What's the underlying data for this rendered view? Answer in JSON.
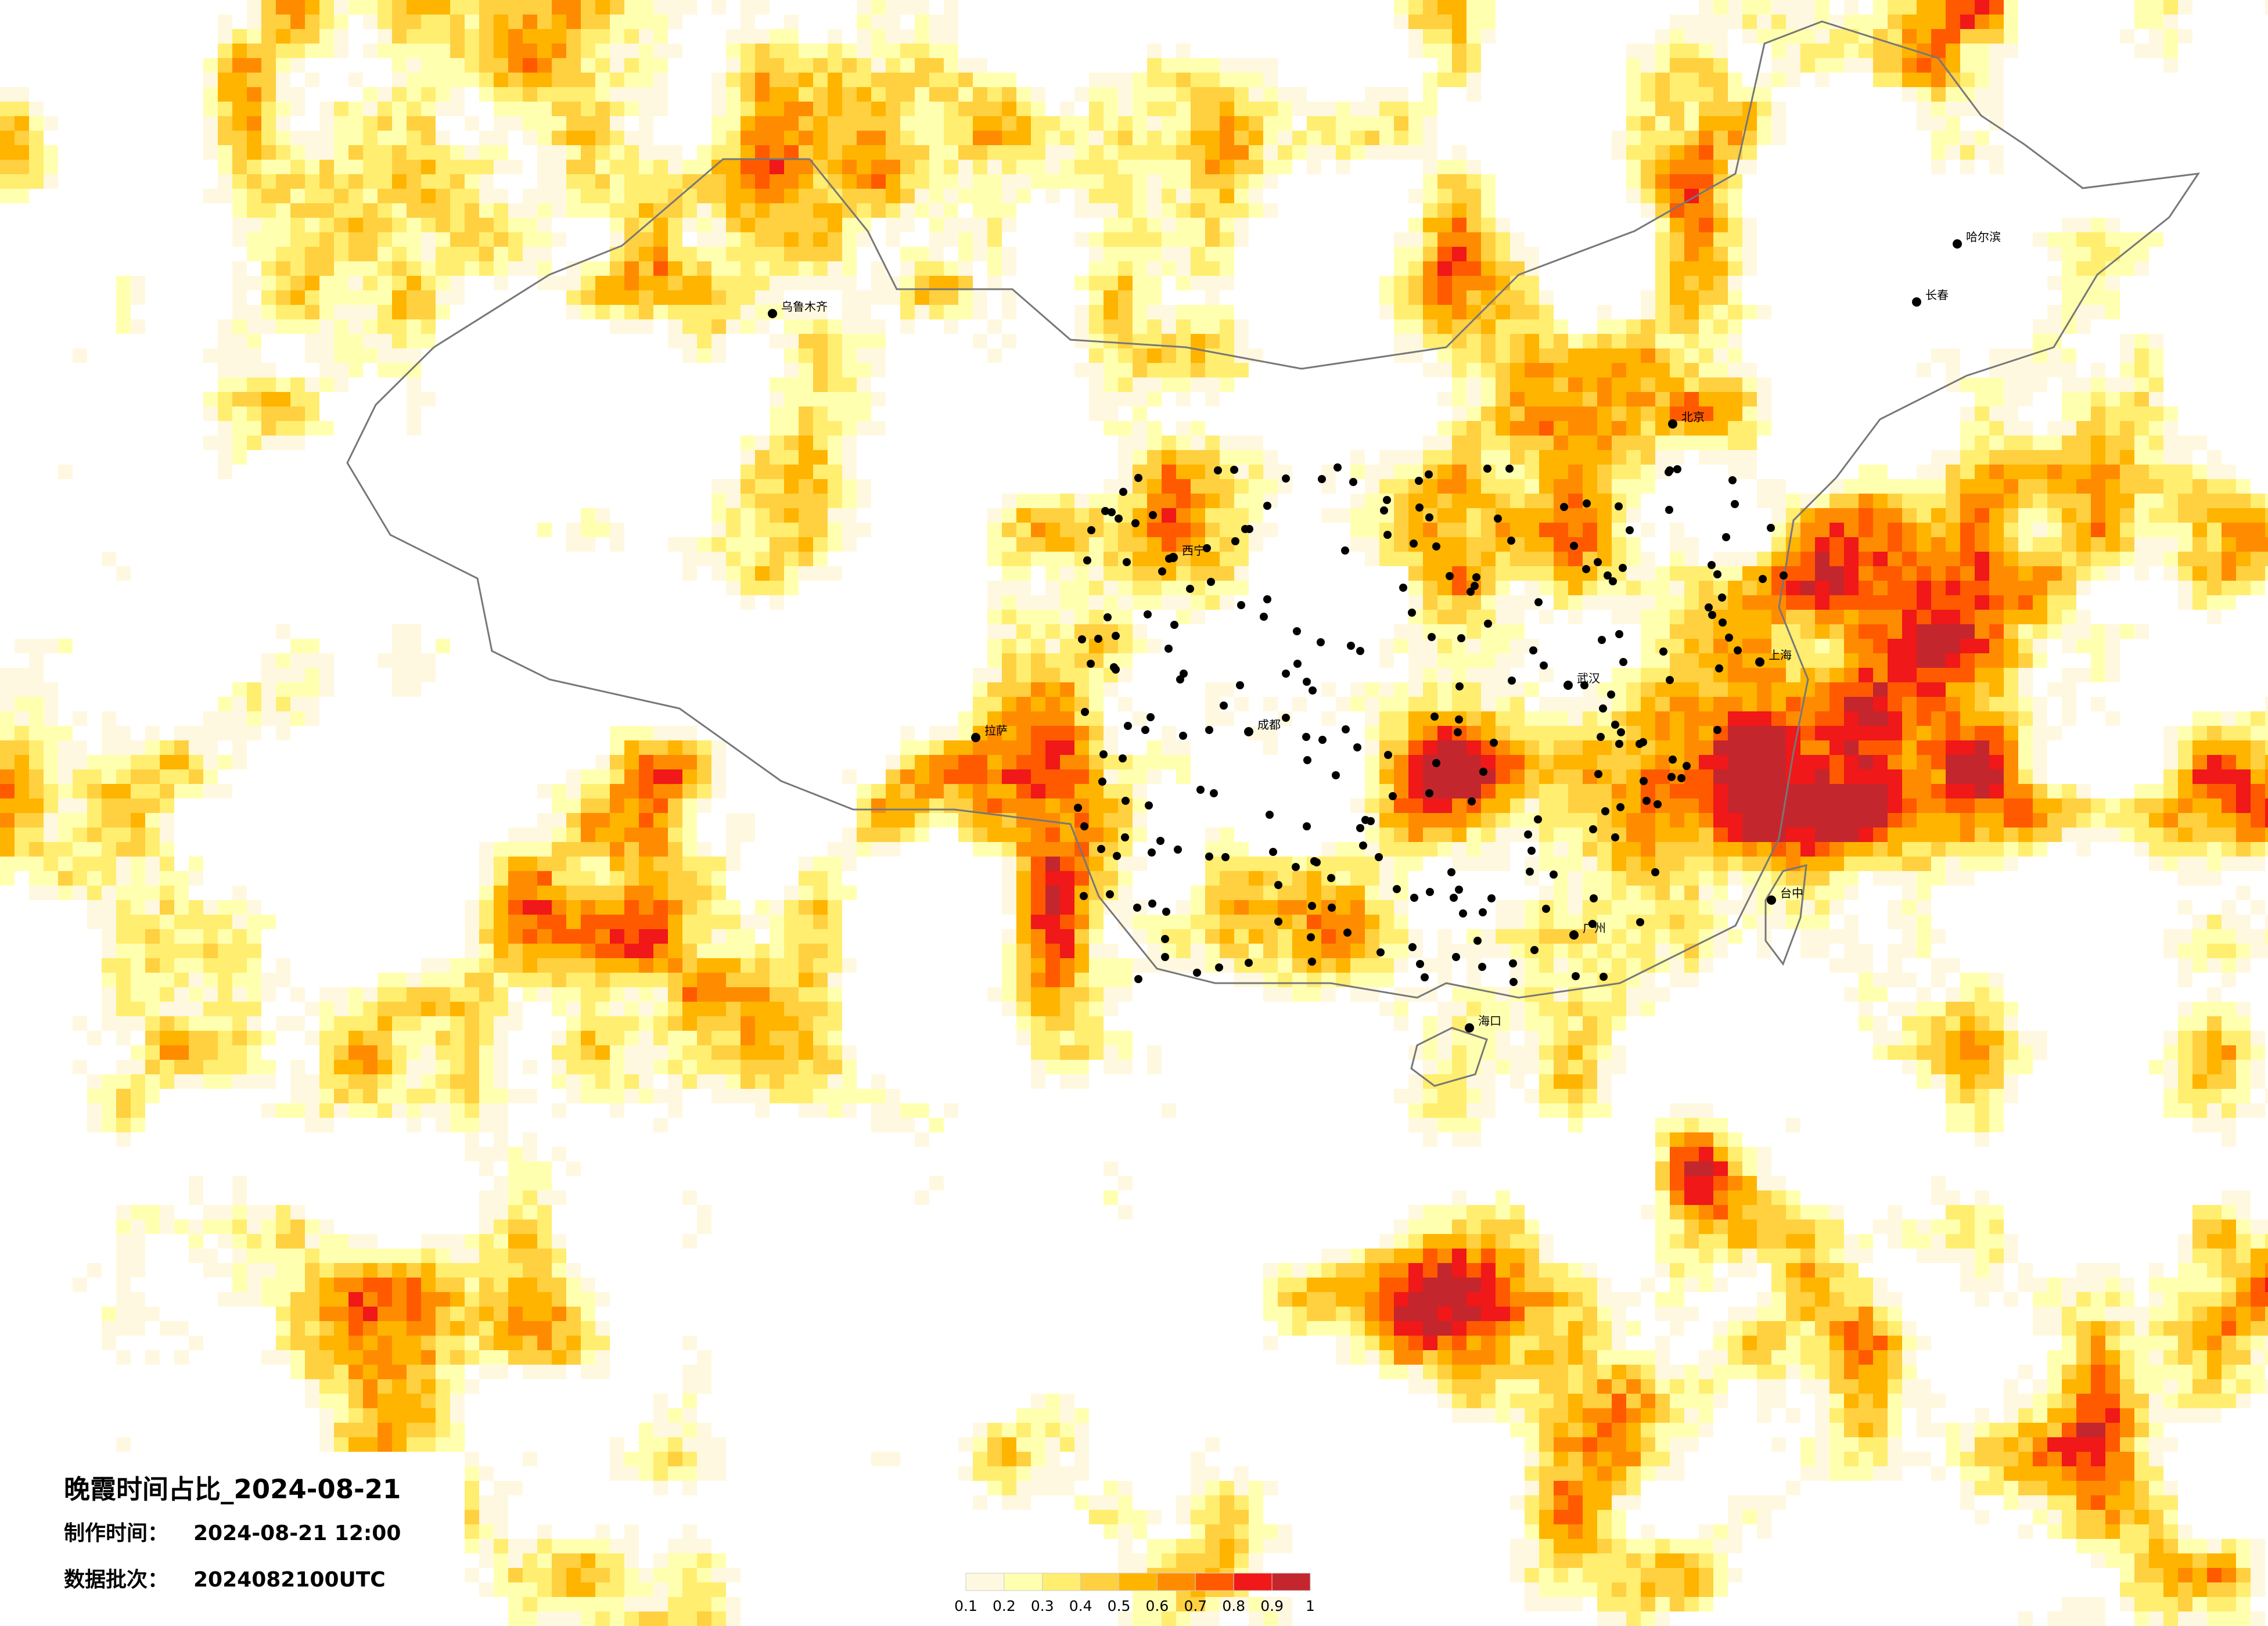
{
  "header": {
    "title": "晚霞时间占比_2024-08-21",
    "made_label": "制作时间：",
    "made_value": "2024-08-21 12:00",
    "batch_label": "数据批次：",
    "batch_value": "2024082100UTC"
  },
  "legend": {
    "colors": [
      "#fff8e0",
      "#ffffb0",
      "#ffee70",
      "#ffd040",
      "#ffb400",
      "#ff8c00",
      "#ff5a00",
      "#f01818",
      "#c4262e"
    ],
    "ticks": [
      "0.1",
      "0.2",
      "0.3",
      "0.4",
      "0.5",
      "0.6",
      "0.7",
      "0.8",
      "0.9",
      "1"
    ]
  },
  "cities": [
    "北京",
    "上海",
    "广州",
    "乌鲁木齐",
    "拉萨",
    "哈尔滨",
    "成都",
    "武汉",
    "西宁",
    "海口",
    "台中",
    "长春"
  ]
}
